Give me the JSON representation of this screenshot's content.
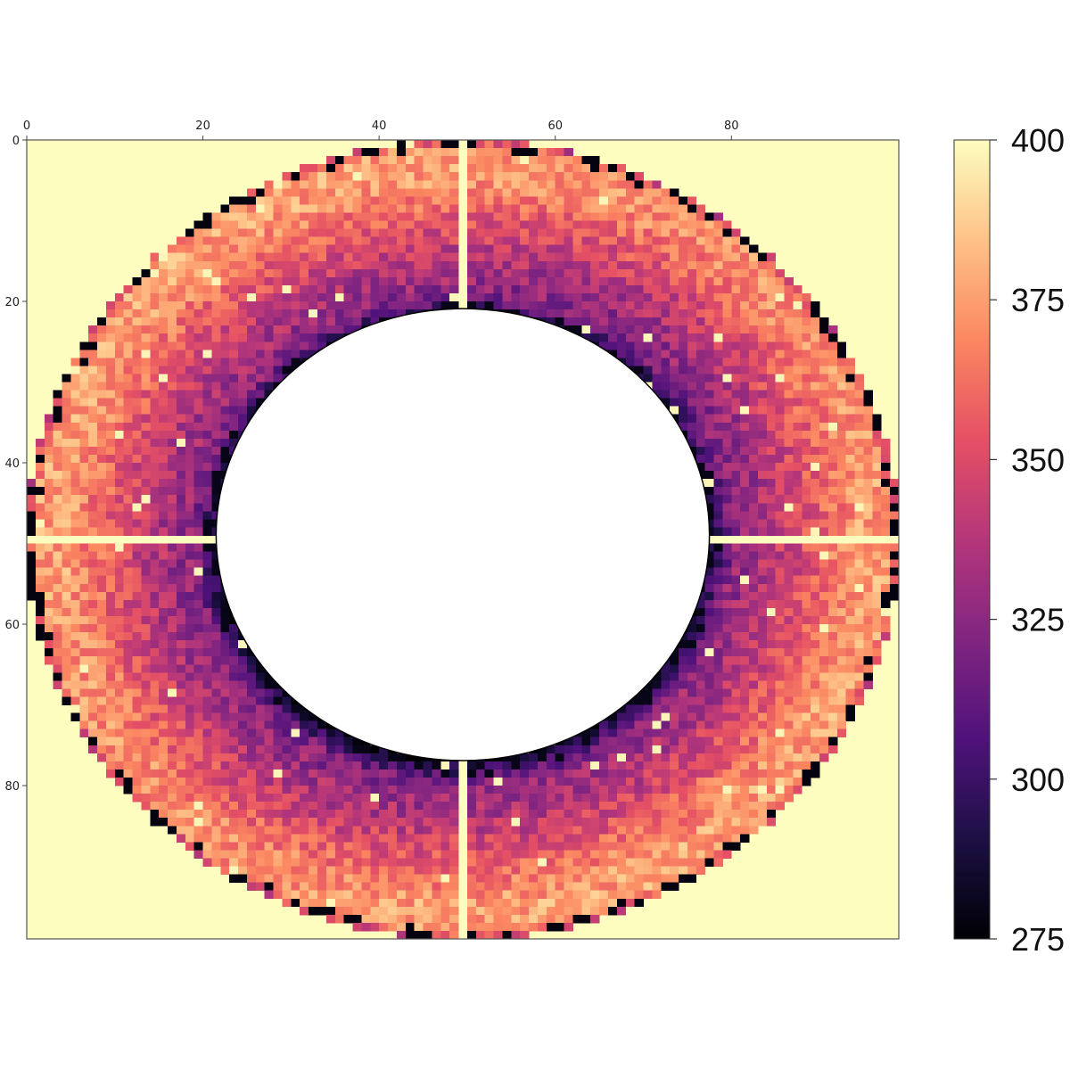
{
  "chart_data": {
    "type": "heatmap",
    "title": "",
    "xlabel": "",
    "ylabel": "",
    "grid": false,
    "colormap": "magma",
    "x_axis_position": "top",
    "xlim": [
      0,
      99
    ],
    "ylim": [
      99,
      0
    ],
    "x_ticks": [
      "0",
      "20",
      "40",
      "60",
      "80"
    ],
    "y_ticks": [
      "0",
      "20",
      "40",
      "60",
      "80"
    ],
    "colorbar": {
      "range": [
        275,
        400
      ],
      "ticks": [
        "400",
        "375",
        "350",
        "325",
        "300",
        "275"
      ]
    },
    "grid_size": [
      99,
      99
    ],
    "center": [
      49.5,
      49.5
    ],
    "outer_radius": 49.5,
    "inner_radius": 28,
    "beam_stop_lines": [
      "vertical at x=49.5",
      "horizontal at y=49.5"
    ],
    "masked_value": 400,
    "ring_values": {
      "outer_edge": 345,
      "outer_band": 375,
      "middle_band": 340,
      "inner_band": 325,
      "inner_edge": 290
    },
    "background_color": "#fcfdbf",
    "center_mask_color": "#ffffff"
  }
}
